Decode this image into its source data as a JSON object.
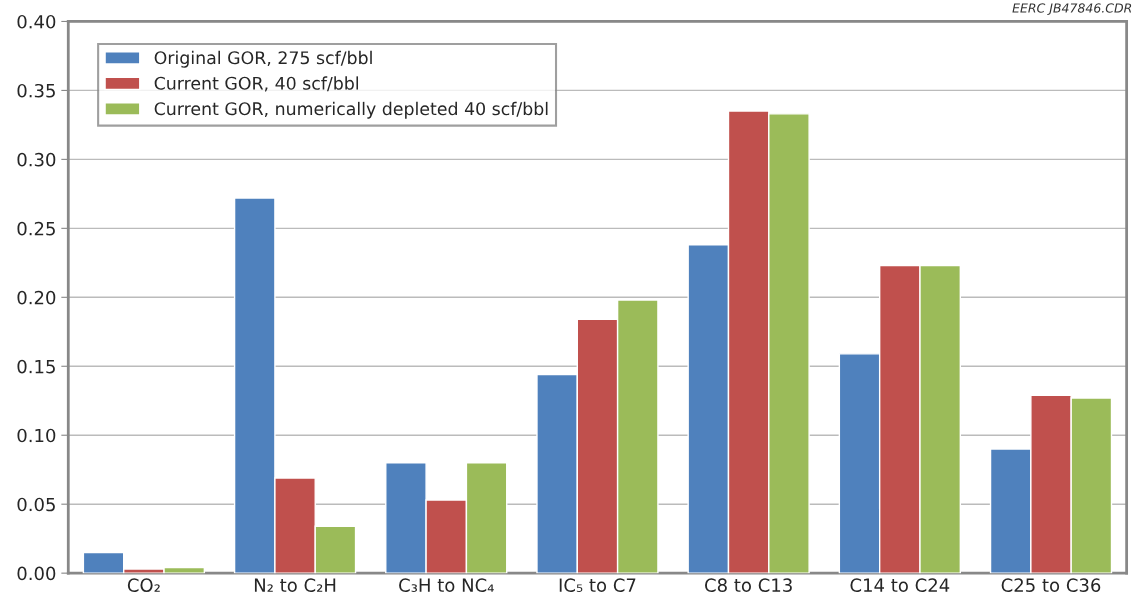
{
  "chart_data": {
    "type": "bar",
    "categories": [
      "CO₂",
      "N₂ to C₂H",
      "C₃H to NC₄",
      "IC₅ to C7",
      "C8 to C13",
      "C14 to C24",
      "C25 to C36"
    ],
    "series": [
      {
        "name": "Original GOR, 275 scf/bbl",
        "color": "#4f81bd",
        "values": [
          0.015,
          0.272,
          0.08,
          0.144,
          0.238,
          0.159,
          0.09
        ]
      },
      {
        "name": "Current GOR, 40 scf/bbl",
        "color": "#c0504d",
        "values": [
          0.003,
          0.069,
          0.053,
          0.184,
          0.335,
          0.223,
          0.129
        ]
      },
      {
        "name": "Current GOR, numerically depleted 40 scf/bbl",
        "color": "#9bbb59",
        "values": [
          0.004,
          0.034,
          0.08,
          0.198,
          0.333,
          0.223,
          0.127
        ]
      }
    ],
    "ylim": [
      0,
      0.4
    ],
    "yticks": [
      {
        "value": 0,
        "label": "0.00"
      },
      {
        "value": 0.05,
        "label": "0.05"
      },
      {
        "value": 0.1,
        "label": "0.10"
      },
      {
        "value": 0.15,
        "label": "0.15"
      },
      {
        "value": 0.2,
        "label": "0.20"
      },
      {
        "value": 0.25,
        "label": "0.25"
      },
      {
        "value": 0.3,
        "label": "0.30"
      },
      {
        "value": 0.35,
        "label": "0.35"
      },
      {
        "value": 0.4,
        "label": "0.40"
      }
    ],
    "grid": "y",
    "legend": "top left",
    "annotations": [
      "EERC JB47846.CDR"
    ]
  }
}
